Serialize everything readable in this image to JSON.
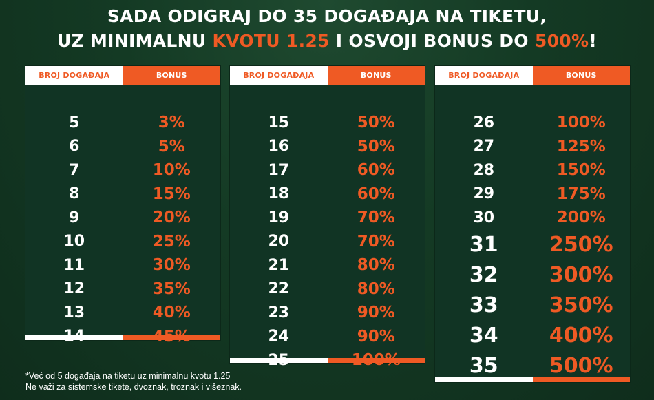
{
  "title": {
    "line1": "SADA ODIGRAJ DO 35 DOGAĐAJA NA TIKETU,",
    "line2_a": "UZ MINIMALNU ",
    "line2_hl1": "KVOTU 1.25",
    "line2_b": " I OSVOJI BONUS DO ",
    "line2_hl2": "500%",
    "line2_c": "!"
  },
  "headers": {
    "events": "BROJ DOGAĐAJA",
    "bonus": "BONUS"
  },
  "tables": [
    {
      "rows": [
        {
          "n": "5",
          "b": "3%"
        },
        {
          "n": "6",
          "b": "5%"
        },
        {
          "n": "7",
          "b": "10%"
        },
        {
          "n": "8",
          "b": "15%"
        },
        {
          "n": "9",
          "b": "20%"
        },
        {
          "n": "10",
          "b": "25%"
        },
        {
          "n": "11",
          "b": "30%"
        },
        {
          "n": "12",
          "b": "35%"
        },
        {
          "n": "13",
          "b": "40%"
        },
        {
          "n": "14",
          "b": "45%"
        }
      ]
    },
    {
      "rows": [
        {
          "n": "15",
          "b": "50%"
        },
        {
          "n": "16",
          "b": "50%"
        },
        {
          "n": "17",
          "b": "60%"
        },
        {
          "n": "18",
          "b": "60%"
        },
        {
          "n": "19",
          "b": "70%"
        },
        {
          "n": "20",
          "b": "70%"
        },
        {
          "n": "21",
          "b": "80%"
        },
        {
          "n": "22",
          "b": "80%"
        },
        {
          "n": "23",
          "b": "90%"
        },
        {
          "n": "24",
          "b": "90%"
        },
        {
          "n": "25",
          "b": "100%"
        }
      ]
    },
    {
      "rows": [
        {
          "n": "26",
          "b": "100%"
        },
        {
          "n": "27",
          "b": "125%"
        },
        {
          "n": "28",
          "b": "150%"
        },
        {
          "n": "29",
          "b": "175%"
        },
        {
          "n": "30",
          "b": "200%"
        },
        {
          "n": "31",
          "b": "250%"
        },
        {
          "n": "32",
          "b": "300%"
        },
        {
          "n": "33",
          "b": "350%"
        },
        {
          "n": "34",
          "b": "400%"
        },
        {
          "n": "35",
          "b": "500%"
        }
      ]
    }
  ],
  "note": {
    "line1": "*Već od 5 događaja na tiketu uz minimalnu kvotu 1.25",
    "line2": "Ne važi za sistemske tikete, dvoznak, troznak i višeznak."
  },
  "colors": {
    "accent": "#ef5a24",
    "background": "#143a24",
    "table": "#113424"
  }
}
